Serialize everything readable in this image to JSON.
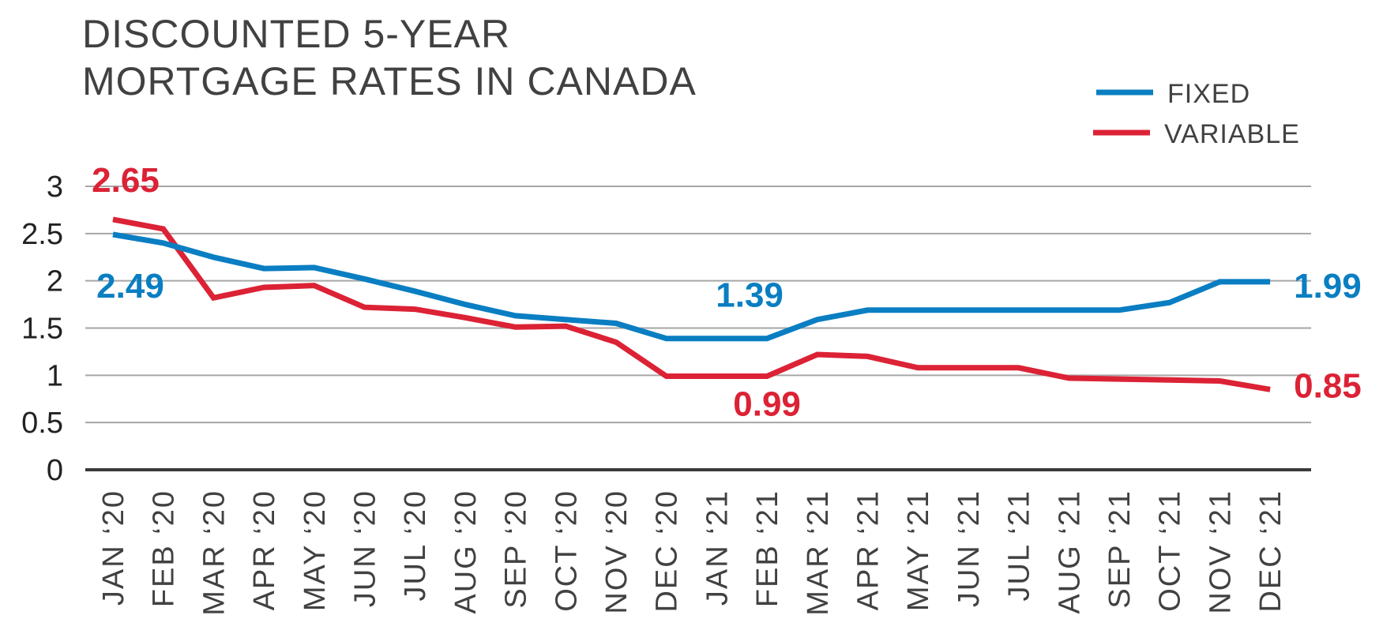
{
  "chart_data": {
    "type": "line",
    "title_lines": [
      "DISCOUNTED 5-YEAR",
      "MORTGAGE RATES IN CANADA"
    ],
    "categories": [
      "JAN ‘20",
      "FEB ‘20",
      "MAR ‘20",
      "APR ‘20",
      "MAY ‘20",
      "JUN ‘20",
      "JUL ‘20",
      "AUG ‘20",
      "SEP ‘20",
      "OCT ‘20",
      "NOV ‘20",
      "DEC ‘20",
      "JAN ‘21",
      "FEB ‘21",
      "MAR ‘21",
      "APR ‘21",
      "MAY ‘21",
      "JUN ‘21",
      "JUL ‘21",
      "AUG ‘21",
      "SEP ‘21",
      "OCT ‘21",
      "NOV ‘21",
      "DEC ‘21"
    ],
    "series": [
      {
        "name": "FIXED",
        "color": "#0a7ec2",
        "values": [
          2.49,
          2.4,
          2.25,
          2.13,
          2.14,
          2.02,
          1.89,
          1.75,
          1.63,
          1.59,
          1.55,
          1.39,
          1.39,
          1.39,
          1.59,
          1.69,
          1.69,
          1.69,
          1.69,
          1.69,
          1.69,
          1.77,
          1.99,
          1.99
        ]
      },
      {
        "name": "VARIABLE",
        "color": "#dc2235",
        "values": [
          2.65,
          2.55,
          1.82,
          1.93,
          1.95,
          1.72,
          1.7,
          1.61,
          1.51,
          1.52,
          1.35,
          0.99,
          0.99,
          0.99,
          1.22,
          1.2,
          1.08,
          1.08,
          1.08,
          0.97,
          0.96,
          0.95,
          0.94,
          0.85
        ]
      }
    ],
    "yticks": [
      "0",
      "0.5",
      "1",
      "1.5",
      "2",
      "2.5",
      "3"
    ],
    "ylim": [
      0,
      3
    ],
    "grid": true,
    "legend_position": "top-right",
    "annotations": [
      {
        "text": "2.65",
        "series": "VARIABLE",
        "category_index": 0,
        "color": "#dc2235"
      },
      {
        "text": "2.49",
        "series": "FIXED",
        "category_index": 0,
        "color": "#0a7ec2"
      },
      {
        "text": "1.39",
        "series": "FIXED",
        "category_index": 13,
        "color": "#0a7ec2"
      },
      {
        "text": "0.99",
        "series": "VARIABLE",
        "category_index": 13,
        "color": "#dc2235"
      },
      {
        "text": "1.99",
        "series": "FIXED",
        "category_index": 23,
        "color": "#0a7ec2"
      },
      {
        "text": "0.85",
        "series": "VARIABLE",
        "category_index": 23,
        "color": "#dc2235"
      }
    ]
  }
}
